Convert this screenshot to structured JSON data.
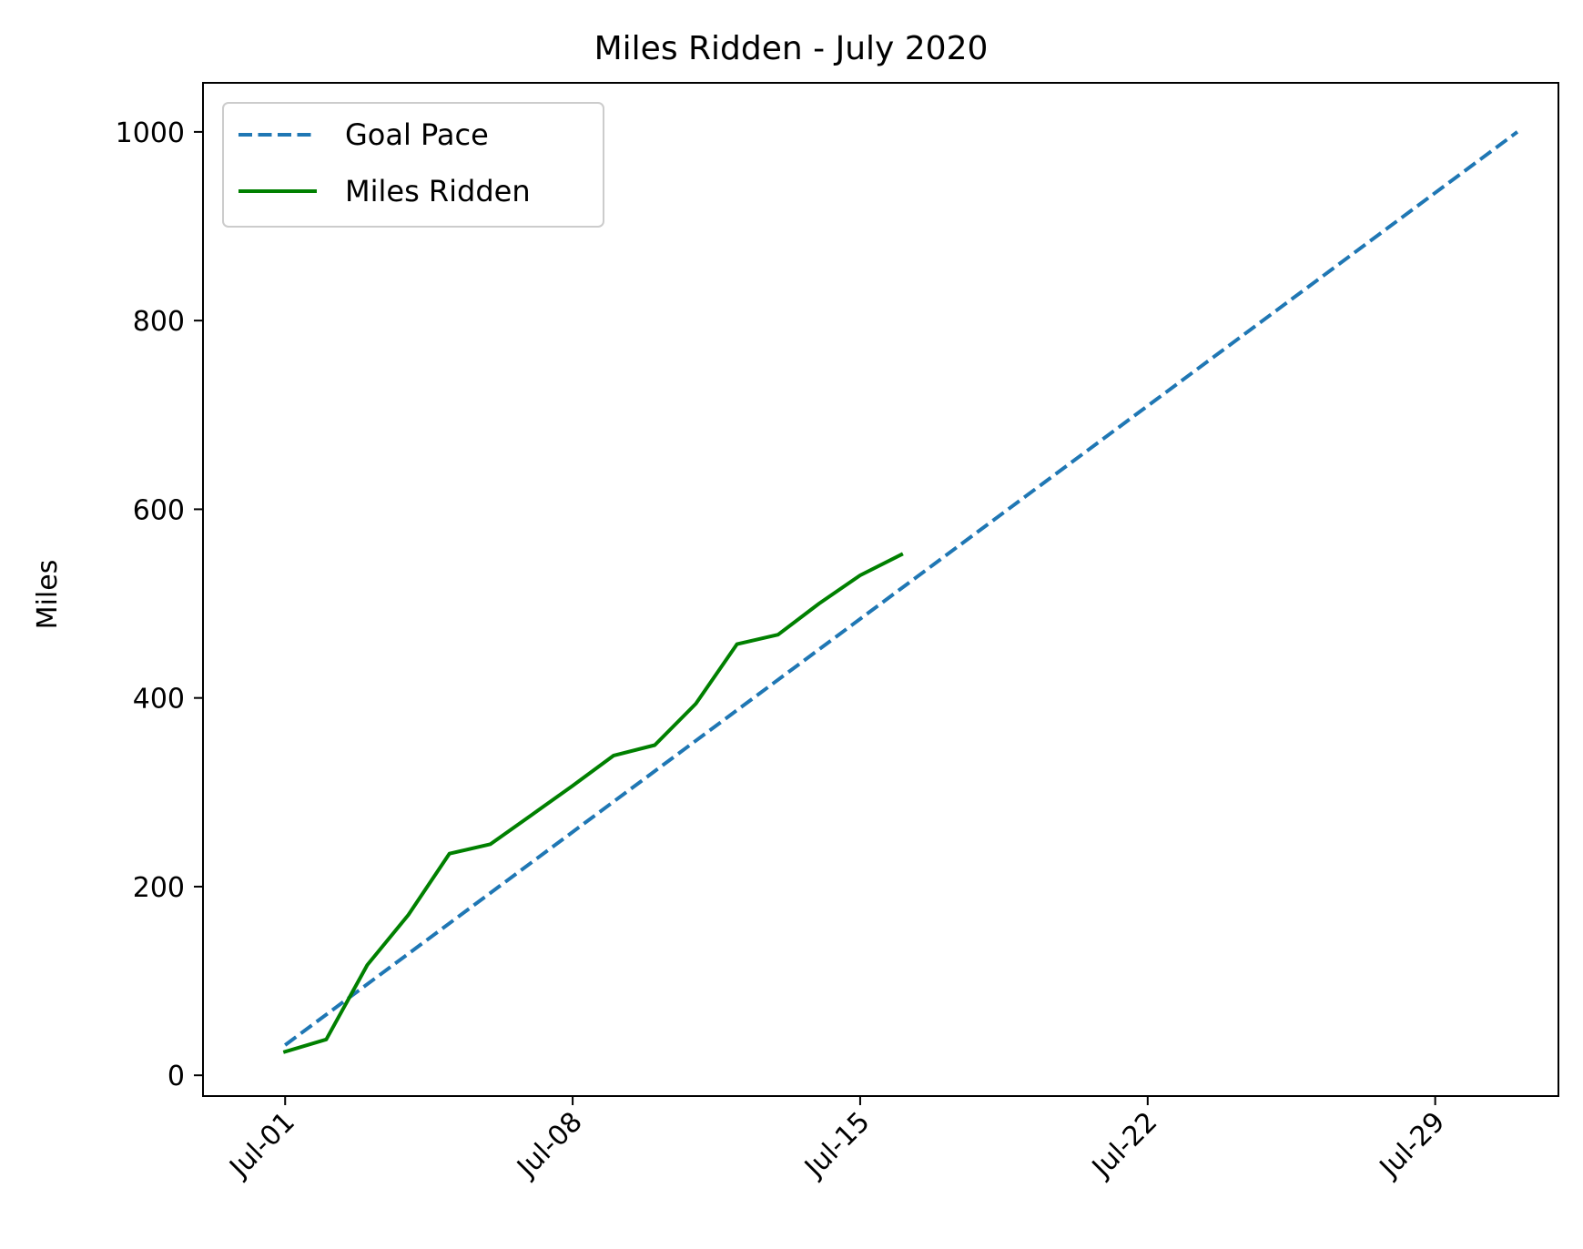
{
  "chart_data": {
    "type": "line",
    "title": "Miles Ridden - July 2020",
    "xlabel": "",
    "ylabel": "Miles",
    "x_type": "date",
    "xlim": [
      "2020-06-29",
      "2020-08-01"
    ],
    "ylim": [
      -22,
      1052
    ],
    "x_ticks": [
      {
        "date": "2020-07-01",
        "label": "Jul-01"
      },
      {
        "date": "2020-07-08",
        "label": "Jul-08"
      },
      {
        "date": "2020-07-15",
        "label": "Jul-15"
      },
      {
        "date": "2020-07-22",
        "label": "Jul-22"
      },
      {
        "date": "2020-07-29",
        "label": "Jul-29"
      }
    ],
    "y_ticks": [
      {
        "value": 0,
        "label": "0"
      },
      {
        "value": 200,
        "label": "200"
      },
      {
        "value": 400,
        "label": "400"
      },
      {
        "value": 600,
        "label": "600"
      },
      {
        "value": 800,
        "label": "800"
      },
      {
        "value": 1000,
        "label": "1000"
      }
    ],
    "grid": false,
    "legend": {
      "position": "top-left"
    },
    "series": [
      {
        "name": "Goal Pace",
        "color": "#1f77b4",
        "style": "dashed",
        "x": [
          "2020-07-01",
          "2020-07-31"
        ],
        "y": [
          32,
          1000
        ]
      },
      {
        "name": "Miles Ridden",
        "color": "#008000",
        "style": "solid",
        "x": [
          "2020-07-01",
          "2020-07-02",
          "2020-07-03",
          "2020-07-04",
          "2020-07-05",
          "2020-07-06",
          "2020-07-07",
          "2020-07-08",
          "2020-07-09",
          "2020-07-10",
          "2020-07-11",
          "2020-07-12",
          "2020-07-13",
          "2020-07-14",
          "2020-07-15",
          "2020-07-16"
        ],
        "y": [
          25,
          38,
          117,
          170,
          235,
          245,
          276,
          307,
          339,
          350,
          394,
          457,
          467,
          500,
          530,
          552
        ]
      }
    ]
  }
}
